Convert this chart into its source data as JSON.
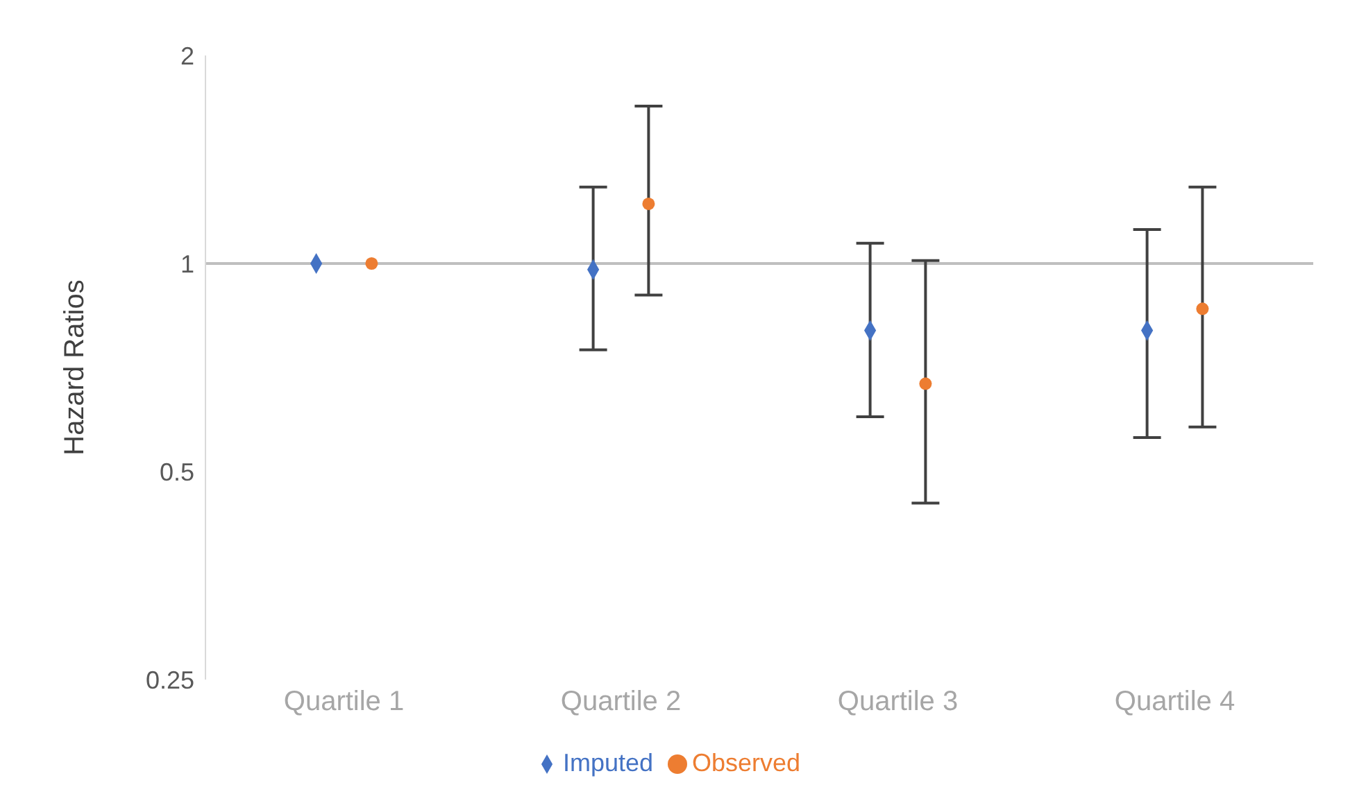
{
  "chart_data": {
    "type": "scatter",
    "ylabel": "Hazard Ratios",
    "categories": [
      "Quartile 1",
      "Quartile 2",
      "Quartile 3",
      "Quartile 4"
    ],
    "series": [
      {
        "name": "Imputed",
        "color": "#4472c4",
        "marker": "diamond",
        "values": [
          1,
          0.98,
          0.8,
          0.8
        ],
        "errors": [
          null,
          [
            0.75,
            1.29
          ],
          [
            0.6,
            1.07
          ],
          [
            0.56,
            1.12
          ]
        ]
      },
      {
        "name": "Observed",
        "color": "#ed7d31",
        "marker": "circle",
        "values": [
          1,
          1.22,
          0.67,
          0.86
        ],
        "errors": [
          null,
          [
            0.9,
            1.69
          ],
          [
            0.45,
            1.01
          ],
          [
            0.58,
            1.29
          ]
        ]
      }
    ],
    "log": "y",
    "ylim": [
      0.25,
      2
    ],
    "yticks": [
      0.25,
      0.5,
      1,
      2
    ],
    "ref_lines": [
      {
        "axis": "y",
        "value": 1,
        "color": "#bfbfbf"
      }
    ],
    "grid": false,
    "legend": "bottom"
  }
}
